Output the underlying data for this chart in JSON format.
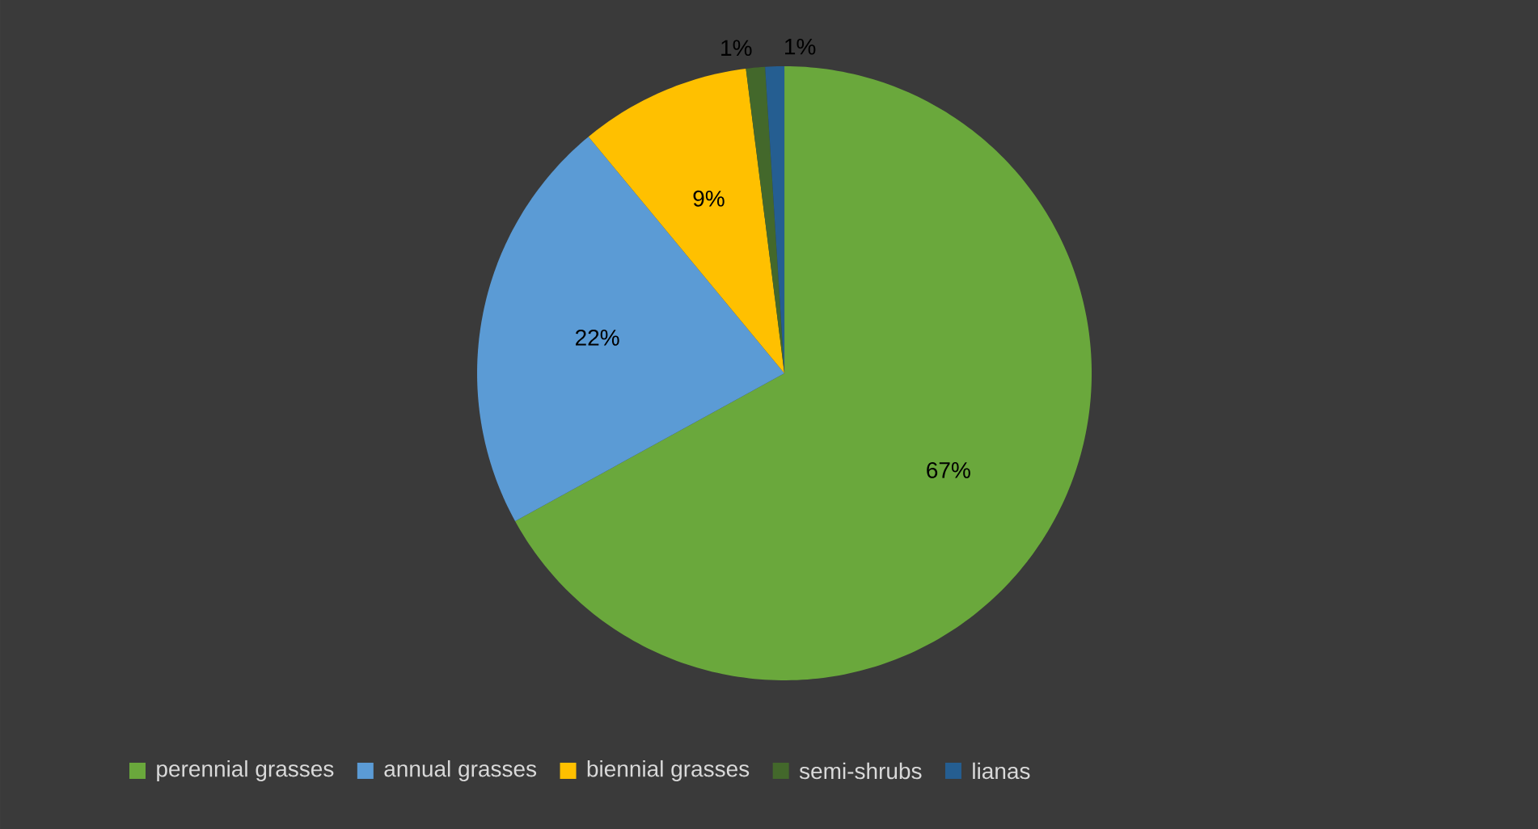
{
  "chart_data": {
    "type": "pie",
    "categories": [
      "perennial grasses",
      "annual grasses",
      "biennial grasses",
      "semi-shrubs",
      "lianas"
    ],
    "values": [
      67,
      22,
      9,
      1,
      1
    ],
    "colors": [
      "#6aa83c",
      "#5b9bd5",
      "#ffc000",
      "#43682b",
      "#255e91"
    ],
    "value_labels": [
      "67%",
      "22%",
      "9%",
      "1%",
      "1%"
    ],
    "legend": "bottom"
  }
}
